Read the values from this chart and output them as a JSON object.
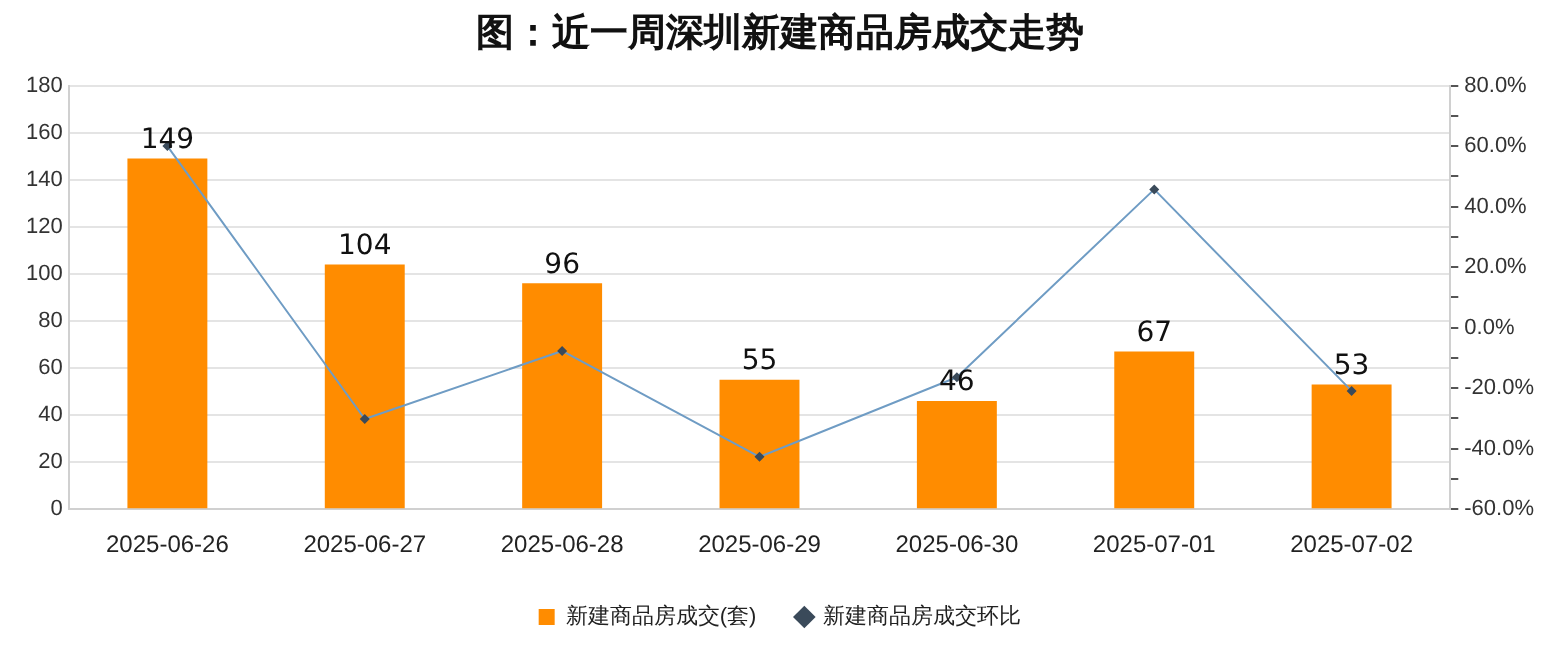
{
  "chart_data": {
    "type": "bar",
    "title": "图：近一周深圳新建商品房成交走势",
    "categories": [
      "2025-06-26",
      "2025-06-27",
      "2025-06-28",
      "2025-06-29",
      "2025-06-30",
      "2025-07-01",
      "2025-07-02"
    ],
    "series": [
      {
        "name": "新建商品房成交(套)",
        "color": "#ff8c00",
        "values": [
          149,
          104,
          96,
          55,
          46,
          67,
          53
        ],
        "value_labels": [
          "149",
          "104",
          "96",
          "55",
          "46",
          "67",
          "53"
        ]
      },
      {
        "name": "新建商品房成交环比",
        "type": "line",
        "axis": "y2",
        "color": "#6f9cc4",
        "values": [
          60,
          -30.2,
          -7.7,
          -42.7,
          -16.4,
          45.7,
          -20.9
        ]
      }
    ],
    "ylim": [
      0,
      180
    ],
    "yticks": [
      0,
      20,
      40,
      60,
      80,
      100,
      120,
      140,
      160,
      180
    ],
    "y2lim": [
      -60,
      80
    ],
    "y2ticks": [
      {
        "value": -60,
        "label": "-60.0%"
      },
      {
        "value": -50,
        "label": null
      },
      {
        "value": -40,
        "label": "-40.0%"
      },
      {
        "value": -30,
        "label": null
      },
      {
        "value": -20,
        "label": "-20.0%"
      },
      {
        "value": -10,
        "label": null
      },
      {
        "value": 0,
        "label": "0.0%"
      },
      {
        "value": 10,
        "label": null
      },
      {
        "value": 20,
        "label": "20.0%"
      },
      {
        "value": 30,
        "label": null
      },
      {
        "value": 40,
        "label": "40.0%"
      },
      {
        "value": 50,
        "label": null
      },
      {
        "value": 60,
        "label": "60.0%"
      },
      {
        "value": 70,
        "label": null
      },
      {
        "value": 80,
        "label": "80.0%"
      }
    ],
    "grid": "y",
    "legend": "bottom",
    "marker": "diamond",
    "line_style": "solid"
  }
}
